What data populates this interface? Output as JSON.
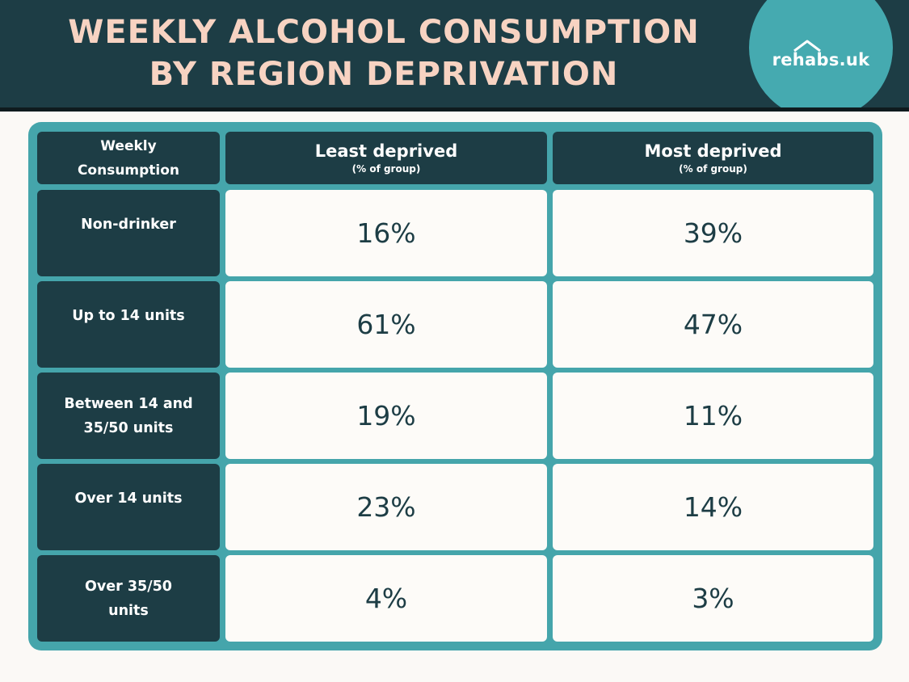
{
  "title": {
    "line1": "WEEKLY ALCOHOL CONSUMPTION",
    "line2": "BY REGION DEPRIVATION"
  },
  "logo": {
    "text": "rehabs.uk",
    "color": "#45aab0"
  },
  "colors": {
    "header_bg": "#1d3d45",
    "title_text": "#f7d3c2",
    "frame": "#45a5ab",
    "cell_bg": "#fdfbf8"
  },
  "chart_data": {
    "type": "table",
    "title": "WEEKLY ALCOHOL CONSUMPTION BY REGION DEPRIVATION",
    "corner_header": [
      "Weekly",
      "Consumption"
    ],
    "columns": [
      {
        "name": "Least deprived",
        "note": "(% of group)"
      },
      {
        "name": "Most deprived",
        "note": "(% of group)"
      }
    ],
    "rows": [
      {
        "label": [
          "Non-drinker"
        ],
        "values": [
          "16%",
          "39%"
        ]
      },
      {
        "label": [
          "Up to 14 units"
        ],
        "values": [
          "61%",
          "47%"
        ]
      },
      {
        "label": [
          "Between 14 and",
          "35/50 units"
        ],
        "values": [
          "19%",
          "11%"
        ]
      },
      {
        "label": [
          "Over 14 units"
        ],
        "values": [
          "23%",
          "14%"
        ]
      },
      {
        "label": [
          "Over 35/50",
          "units"
        ],
        "values": [
          "4%",
          "3%"
        ]
      }
    ]
  }
}
